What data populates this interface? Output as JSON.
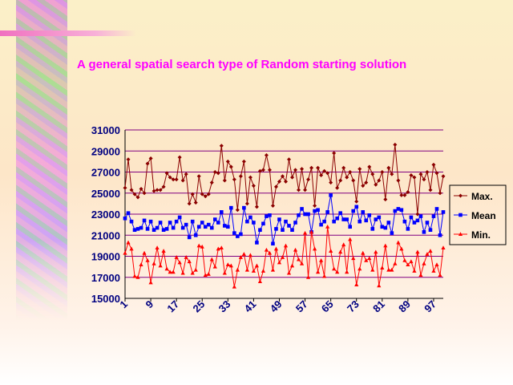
{
  "slide": {
    "title": "A general spatial search type of Random starting solution"
  },
  "colors": {
    "max": "#8b0000",
    "mean": "#0000ff",
    "min": "#ff0000",
    "grid": "#800080",
    "title": "#ff00ff",
    "tick_label": "#000080"
  },
  "chart_data": {
    "type": "line",
    "title": "",
    "xlabel": "",
    "ylabel": "",
    "ylim": [
      15000,
      31000
    ],
    "yticks": [
      15000,
      17000,
      19000,
      21000,
      23000,
      25000,
      27000,
      29000,
      31000
    ],
    "xlim": [
      1,
      100
    ],
    "xticks": [
      1,
      9,
      17,
      25,
      33,
      41,
      49,
      57,
      65,
      73,
      81,
      89,
      97
    ],
    "grid": true,
    "legend_position": "right",
    "x": [
      1,
      2,
      3,
      4,
      5,
      6,
      7,
      8,
      9,
      10,
      11,
      12,
      13,
      14,
      15,
      16,
      17,
      18,
      19,
      20,
      21,
      22,
      23,
      24,
      25,
      26,
      27,
      28,
      29,
      30,
      31,
      32,
      33,
      34,
      35,
      36,
      37,
      38,
      39,
      40,
      41,
      42,
      43,
      44,
      45,
      46,
      47,
      48,
      49,
      50,
      51,
      52,
      53,
      54,
      55,
      56,
      57,
      58,
      59,
      60,
      61,
      62,
      63,
      64,
      65,
      66,
      67,
      68,
      69,
      70,
      71,
      72,
      73,
      74,
      75,
      76,
      77,
      78,
      79,
      80,
      81,
      82,
      83,
      84,
      85,
      86,
      87,
      88,
      89,
      90,
      91,
      92,
      93,
      94,
      95,
      96,
      97,
      98,
      99,
      100
    ],
    "series": [
      {
        "name": "Max.",
        "marker": "diamond",
        "values": [
          25500,
          28200,
          25300,
          24900,
          24600,
          25400,
          25000,
          27800,
          28300,
          25200,
          25300,
          25300,
          25600,
          26900,
          26500,
          26300,
          26300,
          28400,
          26200,
          26800,
          24000,
          24900,
          24100,
          26600,
          24900,
          24700,
          24900,
          26000,
          27000,
          26900,
          29500,
          26200,
          28000,
          27500,
          26300,
          23400,
          26600,
          28000,
          24000,
          26500,
          25700,
          23700,
          27100,
          27200,
          28600,
          27200,
          23800,
          25600,
          26100,
          26600,
          26100,
          28200,
          26500,
          27200,
          25300,
          27300,
          25300,
          26300,
          27400,
          23800,
          27400,
          26700,
          27100,
          26900,
          26000,
          28800,
          25500,
          26200,
          27400,
          26500,
          27000,
          26200,
          24200,
          27300,
          25700,
          26000,
          27500,
          26800,
          25800,
          26200,
          27000,
          24400,
          27400,
          26800,
          29600,
          26200,
          24800,
          24800,
          25100,
          26700,
          26500,
          23000,
          26800,
          26300,
          27000,
          25300,
          27700,
          26900,
          25000,
          26600
        ]
      },
      {
        "name": "Mean",
        "marker": "square",
        "values": [
          22600,
          23100,
          22300,
          21500,
          21600,
          21700,
          22400,
          21600,
          22300,
          21500,
          21700,
          22200,
          21500,
          21600,
          22200,
          21700,
          22300,
          22700,
          21700,
          22000,
          20800,
          22300,
          21000,
          21800,
          22200,
          21800,
          22000,
          21700,
          22500,
          22200,
          23200,
          21900,
          21800,
          23600,
          21200,
          20900,
          21100,
          23600,
          22300,
          22700,
          22200,
          20300,
          21500,
          22100,
          22800,
          22900,
          20200,
          21600,
          22500,
          21500,
          22300,
          21900,
          21500,
          22200,
          22900,
          23500,
          23000,
          23000,
          21300,
          23300,
          23400,
          22000,
          22300,
          23200,
          24800,
          22300,
          22600,
          23100,
          22500,
          22500,
          21800,
          23300,
          23700,
          22300,
          23200,
          22400,
          22900,
          21600,
          22500,
          22700,
          21800,
          21700,
          22200,
          21200,
          23300,
          23500,
          23400,
          22300,
          21600,
          22700,
          22200,
          22400,
          22800,
          21300,
          22200,
          21500,
          22800,
          23500,
          21000,
          23200
        ]
      },
      {
        "name": "Min.",
        "marker": "triangle",
        "values": [
          19300,
          20300,
          19700,
          17100,
          17000,
          18200,
          19300,
          18600,
          16500,
          18300,
          19800,
          18100,
          19500,
          17800,
          17500,
          17500,
          18900,
          18400,
          17400,
          18900,
          18500,
          17400,
          17700,
          20000,
          19900,
          17200,
          17300,
          18700,
          18000,
          19700,
          19800,
          17400,
          18200,
          18100,
          16100,
          17700,
          18900,
          19200,
          17700,
          19100,
          17600,
          18100,
          16600,
          17600,
          19600,
          19300,
          17700,
          19700,
          18400,
          18900,
          20000,
          17400,
          18100,
          19600,
          18700,
          18300,
          21200,
          17000,
          21300,
          19700,
          17500,
          18600,
          17100,
          21800,
          19500,
          17800,
          17500,
          19400,
          20100,
          17500,
          20600,
          18800,
          16300,
          17800,
          19300,
          18600,
          18800,
          17700,
          19400,
          16200,
          17900,
          20000,
          17700,
          17700,
          18300,
          20300,
          19700,
          18600,
          18200,
          18500,
          17600,
          19400,
          17200,
          18300,
          19200,
          19500,
          17600,
          18200,
          17200,
          19800
        ]
      }
    ]
  }
}
